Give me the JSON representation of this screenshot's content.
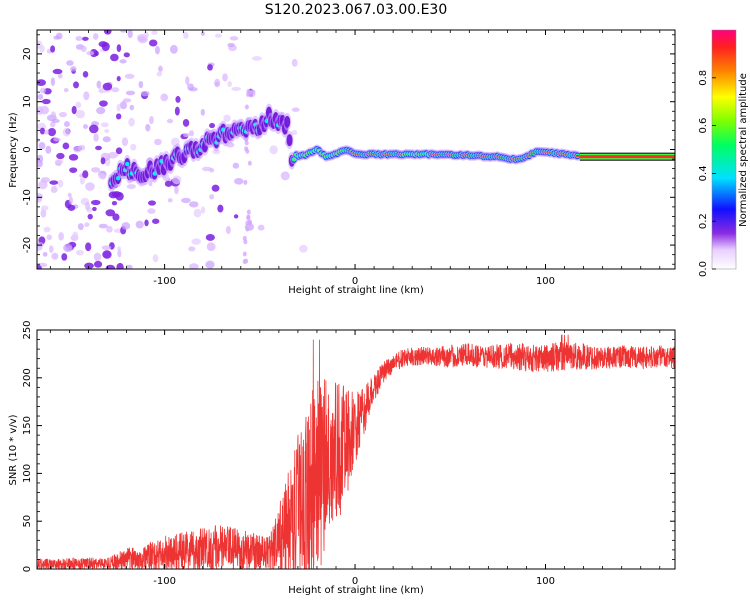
{
  "title": "S120.2023.067.03.00.E30",
  "chart_data": [
    {
      "type": "heatmap",
      "name": "spectrogram",
      "xlabel": "Height of straight line (km)",
      "ylabel": "Frequency (Hz)",
      "xlim": [
        -167,
        168
      ],
      "ylim": [
        -25,
        25
      ],
      "xticks": [
        -100,
        0,
        100
      ],
      "xtick_labels": [
        "-100",
        "0",
        "100"
      ],
      "yticks": [
        -20,
        -10,
        0,
        10,
        20
      ],
      "ytick_labels": [
        "-20",
        "-10",
        "0",
        "10",
        "20"
      ],
      "ridge": {
        "x": [
          -128,
          -120,
          -110,
          -100,
          -90,
          -80,
          -70,
          -60,
          -50,
          -45,
          -40,
          -35,
          -33,
          -30,
          -25,
          -20,
          -15,
          -10,
          -5,
          0,
          20,
          40,
          60,
          70,
          75,
          80,
          85,
          90,
          95,
          100,
          110,
          120,
          140,
          168
        ],
        "freq": [
          -6,
          -4,
          -5,
          -3,
          -1,
          1,
          3,
          4,
          5,
          7,
          6,
          5,
          -2,
          -1.5,
          -1,
          0,
          -1.5,
          -1,
          0,
          -1,
          -1,
          -1,
          -1.2,
          -1.5,
          -1.5,
          -2,
          -2,
          -1.5,
          -0.5,
          -0.5,
          -1,
          -1.5,
          -1.5,
          -1.5
        ]
      },
      "colorbar": {
        "label": "Normalized spectral amplitude",
        "range": [
          0,
          1
        ],
        "ticks": [
          0.0,
          0.2,
          0.4,
          0.6,
          0.8
        ],
        "tick_labels": [
          "0.0",
          "0.2",
          "0.4",
          "0.6",
          "0.8"
        ]
      }
    },
    {
      "type": "line",
      "name": "snr",
      "xlabel": "Height of straight line (km)",
      "ylabel": "SNR (10 * v/v)",
      "xlim": [
        -167,
        168
      ],
      "ylim": [
        0,
        250
      ],
      "xticks": [
        -100,
        0,
        100
      ],
      "xtick_labels": [
        "-100",
        "0",
        "100"
      ],
      "yticks": [
        0,
        50,
        100,
        150,
        200,
        250
      ],
      "ytick_labels": [
        "0",
        "50",
        "100",
        "150",
        "200",
        "250"
      ],
      "color": "#ee3333",
      "envelope": {
        "x": [
          -167,
          -130,
          -120,
          -110,
          -100,
          -90,
          -80,
          -70,
          -60,
          -50,
          -45,
          -40,
          -35,
          -30,
          -25,
          -20,
          -15,
          -10,
          -5,
          0,
          5,
          10,
          15,
          20,
          25,
          30,
          40,
          50,
          60,
          70,
          80,
          90,
          100,
          110,
          120,
          130,
          140,
          150,
          160,
          168
        ],
        "base": [
          5,
          6,
          10,
          12,
          15,
          18,
          20,
          22,
          20,
          18,
          18,
          25,
          45,
          60,
          80,
          100,
          110,
          120,
          130,
          145,
          165,
          190,
          205,
          215,
          220,
          222,
          223,
          222,
          224,
          222,
          223,
          221,
          220,
          224,
          222,
          221,
          222,
          221,
          222,
          222
        ],
        "spread": [
          6,
          6,
          12,
          14,
          20,
          22,
          25,
          25,
          22,
          18,
          18,
          40,
          60,
          80,
          100,
          110,
          90,
          80,
          60,
          40,
          25,
          15,
          12,
          10,
          10,
          10,
          10,
          12,
          12,
          12,
          14,
          15,
          15,
          16,
          14,
          12,
          12,
          12,
          12,
          12
        ]
      }
    }
  ]
}
